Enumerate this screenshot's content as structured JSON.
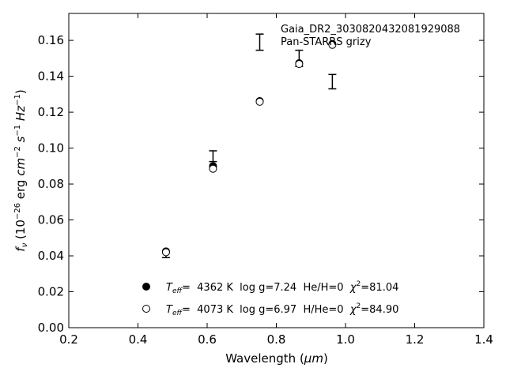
{
  "chart_data": {
    "type": "scatter",
    "xlabel_main": "Wavelength (",
    "xlabel_unit": "μm",
    "xlabel_end": ")",
    "ylabel_prefix": "f",
    "ylabel_sub": "ν",
    "ylabel_mid": " (10",
    "ylabel_exp1": "−26",
    "ylabel_erg": " erg ",
    "ylabel_cm": "cm",
    "ylabel_exp2": "−2",
    "ylabel_s": " s",
    "ylabel_exp3": "−1",
    "ylabel_hz": " Hz",
    "ylabel_exp4": "−1",
    "ylabel_end": ")",
    "xlim": [
      0.2,
      1.4
    ],
    "ylim": [
      0.0,
      0.175
    ],
    "xticks": [
      0.2,
      0.4,
      0.6,
      0.8,
      1.0,
      1.2,
      1.4
    ],
    "yticks": [
      0.0,
      0.02,
      0.04,
      0.06,
      0.08,
      0.1,
      0.12,
      0.14,
      0.16
    ],
    "xtick_labels": [
      "0.2",
      "0.4",
      "0.6",
      "0.8",
      "1.0",
      "1.2",
      "1.4"
    ],
    "ytick_labels": [
      "0.00",
      "0.02",
      "0.04",
      "0.06",
      "0.08",
      "0.10",
      "0.12",
      "0.14",
      "0.16"
    ],
    "grid": false,
    "annotation_line1": "Gaia_DR2_3030820432081929088",
    "annotation_line2": "Pan-STARRS grizy",
    "observed": {
      "x": [
        0.481,
        0.617,
        0.752,
        0.866,
        0.962
      ],
      "y": [
        0.0405,
        0.0955,
        0.159,
        0.15,
        0.137
      ],
      "yerr": [
        0.0015,
        0.003,
        0.0045,
        0.0045,
        0.004
      ]
    },
    "series": [
      {
        "marker": "filled-circle",
        "x": [
          0.481,
          0.617,
          0.752,
          0.866,
          0.962
        ],
        "y": [
          0.0425,
          0.09,
          0.1262,
          0.1473,
          0.158
        ],
        "legend": {
          "T_sym": "T",
          "T_sub": "eff",
          "text1": "=  4362 K  log g=7.24  He/H=0  ",
          "chi": "χ",
          "chi_exp": "2",
          "text2": "=81.04"
        }
      },
      {
        "marker": "open-circle",
        "x": [
          0.481,
          0.617,
          0.752,
          0.866,
          0.962
        ],
        "y": [
          0.042,
          0.0885,
          0.1258,
          0.1468,
          0.1575
        ],
        "legend": {
          "T_sym": "T",
          "T_sub": "eff",
          "text1": "=  4073 K  log g=6.97  H/He=0  ",
          "chi": "χ",
          "chi_exp": "2",
          "text2": "=84.90"
        }
      }
    ]
  }
}
